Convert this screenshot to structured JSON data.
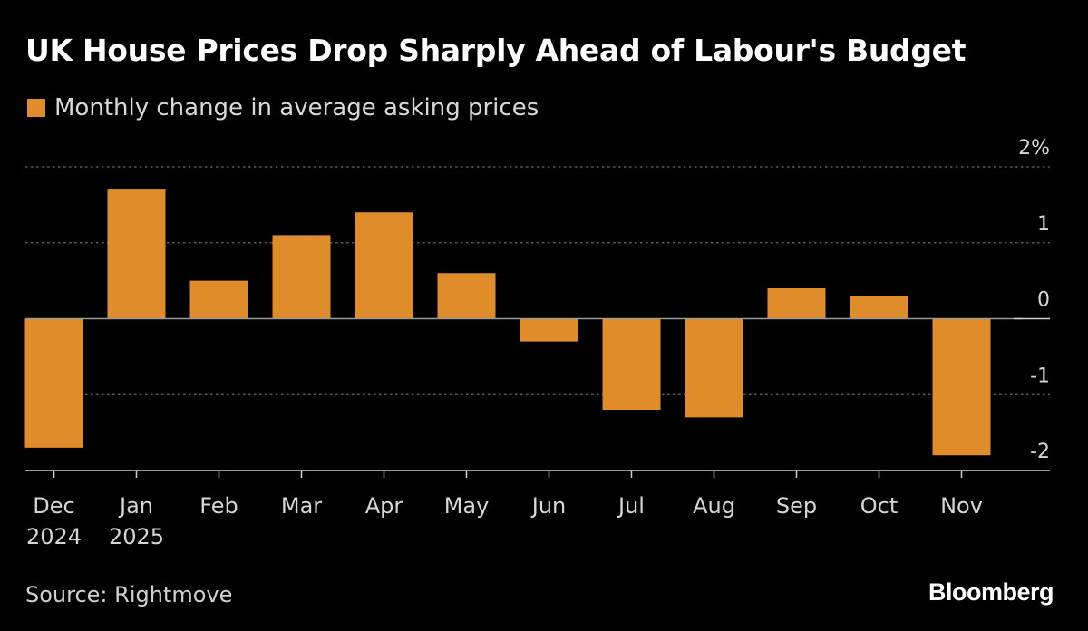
{
  "header": {
    "title": "UK House Prices Drop Sharply Ahead of Labour's Budget"
  },
  "legend": {
    "label": "Monthly change in average asking prices"
  },
  "footer": {
    "source": "Source: Rightmove",
    "brand": "Bloomberg"
  },
  "colors": {
    "background": "#000000",
    "bar": "#e08c2a",
    "grid": "#6e6e6e",
    "axis": "#cfcfcf",
    "text": "#ffffff",
    "muted_text": "#d6d6d6"
  },
  "chart_data": {
    "type": "bar",
    "title": "UK House Prices Drop Sharply Ahead of Labour's Budget",
    "categories": [
      [
        "Dec",
        "2024"
      ],
      [
        "Jan",
        "2025"
      ],
      [
        "Feb"
      ],
      [
        "Mar"
      ],
      [
        "Apr"
      ],
      [
        "May"
      ],
      [
        "Jun"
      ],
      [
        "Jul"
      ],
      [
        "Aug"
      ],
      [
        "Sep"
      ],
      [
        "Oct"
      ],
      [
        "Nov"
      ]
    ],
    "series": [
      {
        "name": "Monthly change in average asking prices",
        "values": [
          -1.7,
          1.7,
          0.5,
          1.1,
          1.4,
          0.6,
          -0.3,
          -1.2,
          -1.3,
          0.4,
          0.3,
          -1.8
        ]
      }
    ],
    "ylim": [
      -2,
      2
    ],
    "yticks": [
      2,
      1,
      0,
      -1,
      -2
    ],
    "ytick_labels": [
      "2%",
      "1",
      "0",
      "-1",
      "-2"
    ],
    "grid": true,
    "yaxis_position": "right",
    "xlabel": "",
    "ylabel": ""
  }
}
